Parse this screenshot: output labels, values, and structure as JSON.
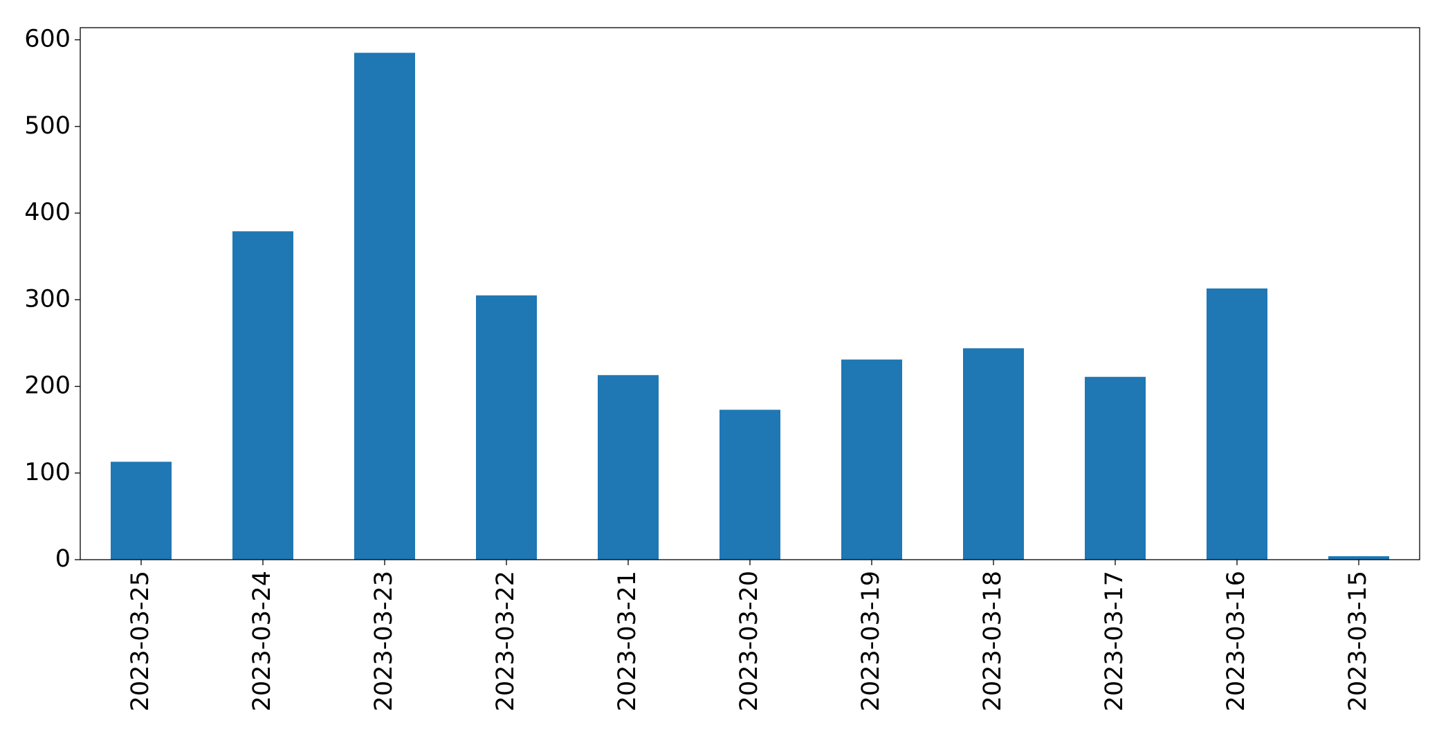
{
  "chart_data": {
    "type": "bar",
    "categories": [
      "2023-03-25",
      "2023-03-24",
      "2023-03-23",
      "2023-03-22",
      "2023-03-21",
      "2023-03-20",
      "2023-03-19",
      "2023-03-18",
      "2023-03-17",
      "2023-03-16",
      "2023-03-15"
    ],
    "values": [
      113,
      379,
      585,
      305,
      213,
      173,
      231,
      244,
      211,
      313,
      4
    ],
    "color": "#1f77b4",
    "ylim": [
      0,
      614
    ],
    "yticks": [
      0,
      100,
      200,
      300,
      400,
      500,
      600
    ],
    "grid": false
  }
}
